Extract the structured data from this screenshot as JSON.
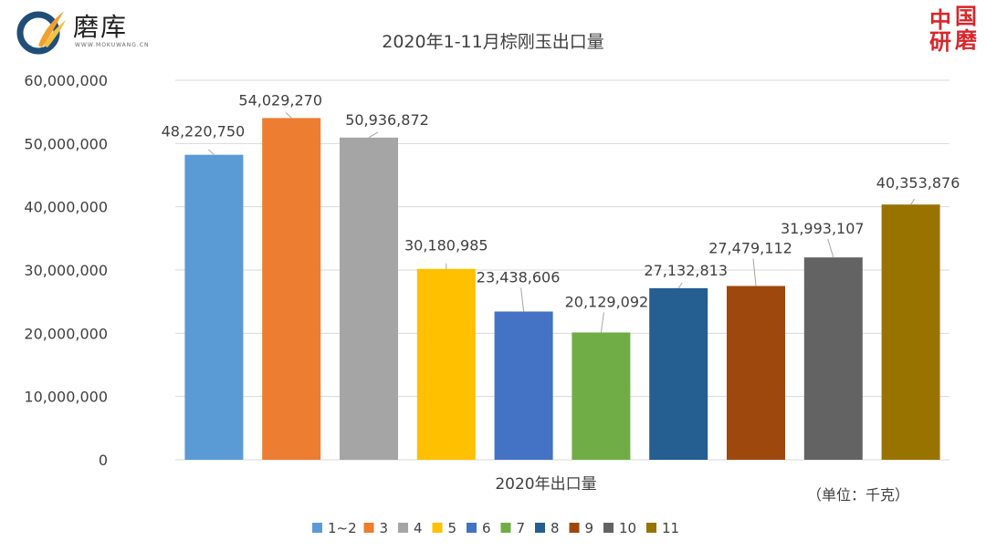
{
  "logo": {
    "name": "磨库",
    "sub": "WWW.MOKUWANG.CN"
  },
  "seal": {
    "chars": [
      "中",
      "国",
      "研",
      "磨"
    ]
  },
  "chart_data": {
    "type": "bar",
    "title": "2020年1-11月棕刚玉出口量",
    "xlabel": "2020年出口量",
    "ylabel": "",
    "unit_note": "（单位：千克）",
    "ylim": [
      0,
      60000000
    ],
    "yticks": [
      0,
      10000000,
      20000000,
      30000000,
      40000000,
      50000000,
      60000000
    ],
    "ytick_labels": [
      "0",
      "10,000,000",
      "20,000,000",
      "30,000,000",
      "40,000,000",
      "50,000,000",
      "60,000,000"
    ],
    "grid": true,
    "legend_position": "bottom",
    "series": [
      {
        "name": "1~2",
        "value": 48220750,
        "label": "48,220,750",
        "color": "#5B9BD5"
      },
      {
        "name": "3",
        "value": 54029270,
        "label": "54,029,270",
        "color": "#ED7D31"
      },
      {
        "name": "4",
        "value": 50936872,
        "label": "50,936,872",
        "color": "#A5A5A5"
      },
      {
        "name": "5",
        "value": 30180985,
        "label": "30,180,985",
        "color": "#FFC000"
      },
      {
        "name": "6",
        "value": 23438606,
        "label": "23,438,606",
        "color": "#4472C4"
      },
      {
        "name": "7",
        "value": 20129092,
        "label": "20,129,092",
        "color": "#70AD47"
      },
      {
        "name": "8",
        "value": 27132813,
        "label": "27,132,813",
        "color": "#255E91"
      },
      {
        "name": "9",
        "value": 27479112,
        "label": "27,479,112",
        "color": "#9E480E"
      },
      {
        "name": "10",
        "value": 31993107,
        "label": "31,993,107",
        "color": "#636363"
      },
      {
        "name": "11",
        "value": 40353876,
        "label": "40,353,876",
        "color": "#997300"
      }
    ]
  }
}
